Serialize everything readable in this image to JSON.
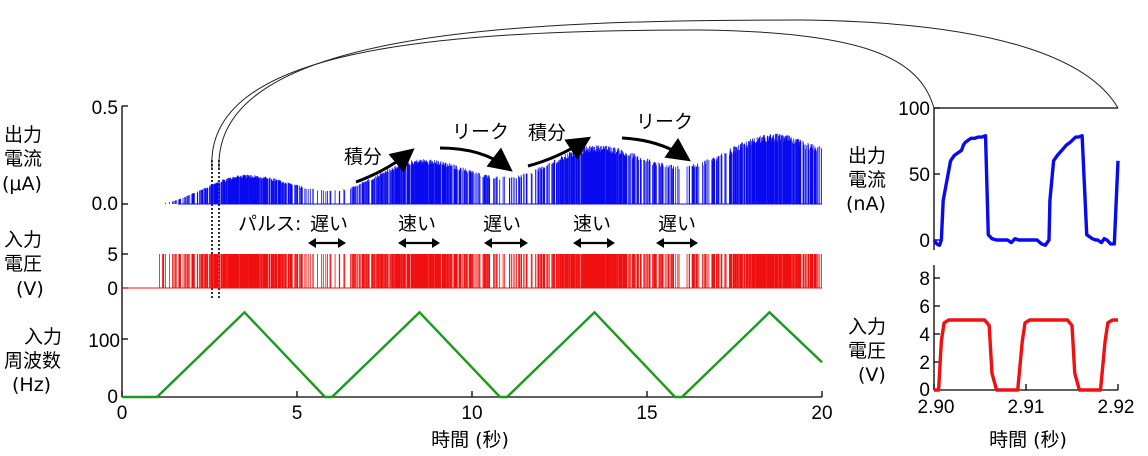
{
  "chart_data": [
    {
      "type": "line",
      "panel": "left",
      "xlabel": "時間 (秒)",
      "xlim": [
        0,
        20
      ],
      "xticks": [
        "0",
        "5",
        "10",
        "15",
        "20"
      ],
      "rows": [
        {
          "key": "current",
          "ylabel": [
            "出力",
            "電流",
            "(μA)"
          ],
          "ylim": [
            0,
            0.5
          ],
          "yticks": [
            "0.0",
            "0.5"
          ],
          "color": "#0a0af0",
          "envelope_peaks": [
            {
              "t": 3.6,
              "v": 0.15
            },
            {
              "t": 8.6,
              "v": 0.23
            },
            {
              "t": 13.6,
              "v": 0.3
            },
            {
              "t": 18.7,
              "v": 0.36
            }
          ],
          "annotations": [
            "積分",
            "リーク",
            "積分",
            "リーク"
          ]
        },
        {
          "key": "voltage",
          "ylabel": [
            "入力",
            "電圧",
            "(V)"
          ],
          "ylim": [
            0,
            5
          ],
          "yticks": [
            "0",
            "5"
          ],
          "color": "#f01010",
          "pulse_amplitude": 5,
          "pulse_label": "パルス:",
          "speed_labels": [
            "遅い",
            "速い",
            "遅い",
            "速い",
            "遅い"
          ]
        },
        {
          "key": "frequency",
          "ylabel": [
            "入力",
            "周波数",
            "(Hz)"
          ],
          "ylim": [
            0,
            150
          ],
          "yticks": [
            "0",
            "100"
          ],
          "color": "#1a9a1a",
          "x": [
            0,
            1.0,
            3.5,
            5.8,
            6.0,
            8.5,
            10.8,
            11.0,
            13.5,
            15.8,
            16.0,
            18.5,
            20
          ],
          "y": [
            0,
            0,
            146,
            0,
            0,
            146,
            0,
            0,
            146,
            0,
            0,
            146,
            60
          ]
        }
      ]
    },
    {
      "type": "line",
      "panel": "right",
      "xlabel": "時間 (秒)",
      "xlim": [
        2.9,
        2.92
      ],
      "xticks": [
        "2.90",
        "2.91",
        "2.92"
      ],
      "rows": [
        {
          "key": "current_zoom",
          "ylabel": [
            "出力",
            "電流",
            "(nA)"
          ],
          "ylim": [
            0,
            100
          ],
          "yticks": [
            "0",
            "50",
            "100"
          ],
          "color": "#0a0af0",
          "x": [
            2.9,
            2.9003,
            2.9006,
            2.9008,
            2.901,
            2.9018,
            2.9022,
            2.903,
            2.9032,
            2.9034,
            2.9036,
            2.904,
            2.9044,
            2.9048,
            2.9052,
            2.9056,
            2.9059,
            2.9063,
            2.9068,
            2.9074,
            2.9078,
            2.908,
            2.9084,
            2.9088,
            2.9092,
            2.9097,
            2.9101,
            2.9105,
            2.9112,
            2.9117,
            2.9121,
            2.9125,
            2.9126,
            2.913,
            2.9134,
            2.9139,
            2.9144,
            2.9148,
            2.9151,
            2.9154,
            2.9157,
            2.9161,
            2.9166,
            2.9172,
            2.9176,
            2.9178,
            2.9182,
            2.9185,
            2.9188,
            2.9192,
            2.9196,
            2.92
          ],
          "y": [
            0,
            -3,
            -4,
            0,
            30,
            60,
            64,
            68,
            72,
            74,
            75,
            77,
            77,
            78,
            78,
            79,
            4,
            1,
            0,
            0,
            0,
            0,
            -2,
            1,
            0,
            0,
            0,
            0,
            0,
            -3,
            -4,
            0,
            30,
            60,
            64,
            68,
            72,
            74,
            76,
            78,
            78,
            79,
            4,
            1,
            0,
            0,
            -2,
            1,
            0,
            -3,
            -3,
            60
          ]
        },
        {
          "key": "voltage_zoom",
          "ylabel": [
            "入力",
            "電圧",
            "(V)"
          ],
          "ylim": [
            0,
            9
          ],
          "yticks": [
            "0",
            "2",
            "4",
            "6",
            "8"
          ],
          "color": "#f01010",
          "x": [
            2.9,
            2.9005,
            2.9008,
            2.9011,
            2.9016,
            2.9055,
            2.906,
            2.9063,
            2.9068,
            2.9091,
            2.9096,
            2.9099,
            2.9104,
            2.9145,
            2.915,
            2.9153,
            2.9158,
            2.9181,
            2.9186,
            2.9189,
            2.9194,
            2.92
          ],
          "y": [
            0,
            0,
            3.5,
            4.8,
            5,
            5,
            4.6,
            1.2,
            0,
            0,
            3.5,
            4.8,
            5,
            5,
            4.6,
            1.2,
            0,
            0,
            3.5,
            4.8,
            5,
            5
          ]
        }
      ]
    }
  ]
}
